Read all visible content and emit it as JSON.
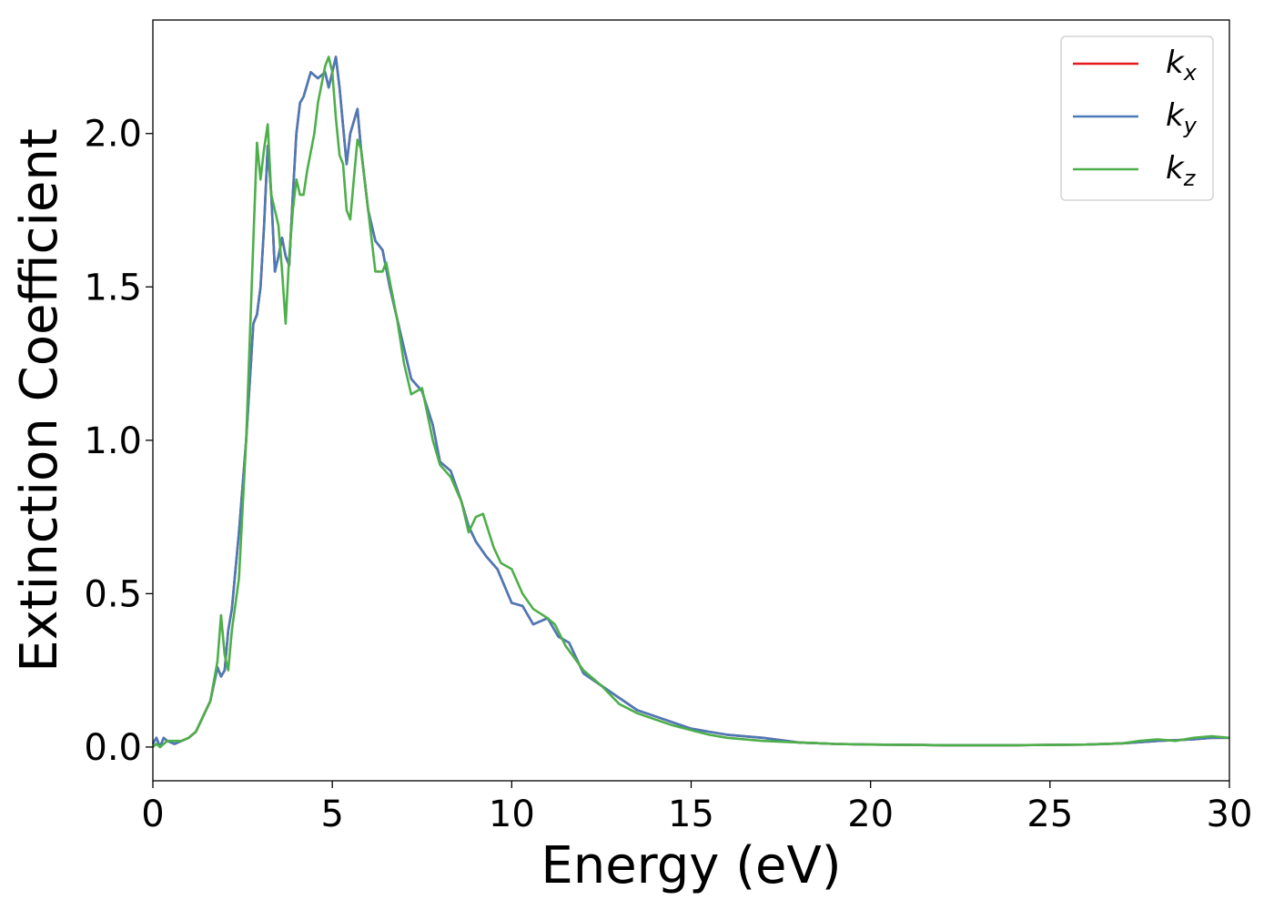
{
  "chart_data": {
    "type": "line",
    "xlabel": "Energy (eV)",
    "ylabel": "Extinction Coefficient",
    "xlim": [
      0,
      30
    ],
    "ylim": [
      -0.11,
      2.37
    ],
    "xticks": [
      0,
      5,
      10,
      15,
      20,
      25,
      30
    ],
    "xtick_labels": [
      "0",
      "5",
      "10",
      "15",
      "20",
      "25",
      "30"
    ],
    "yticks": [
      0.0,
      0.5,
      1.0,
      1.5,
      2.0
    ],
    "ytick_labels": [
      "0.0",
      "0.5",
      "1.0",
      "1.5",
      "2.0"
    ],
    "grid": false,
    "legend_position": "top-right",
    "series": [
      {
        "name": "k",
        "subscript": "x",
        "color": "#e41a1c",
        "x": [
          0,
          0.1,
          0.2,
          0.3,
          0.4,
          0.6,
          0.8,
          1.0,
          1.2,
          1.4,
          1.6,
          1.8,
          1.9,
          2.0,
          2.1,
          2.2,
          2.4,
          2.6,
          2.8,
          2.9,
          3.0,
          3.1,
          3.2,
          3.3,
          3.4,
          3.5,
          3.6,
          3.7,
          3.8,
          3.9,
          4.0,
          4.1,
          4.2,
          4.4,
          4.5,
          4.6,
          4.8,
          4.9,
          5.0,
          5.1,
          5.2,
          5.4,
          5.5,
          5.7,
          5.8,
          6.0,
          6.2,
          6.4,
          6.6,
          6.8,
          7.0,
          7.2,
          7.5,
          7.8,
          8.0,
          8.3,
          8.6,
          8.8,
          9.0,
          9.3,
          9.6,
          10.0,
          10.3,
          10.6,
          11.0,
          11.3,
          11.6,
          12.0,
          12.5,
          13.0,
          13.5,
          14.0,
          14.5,
          15.0,
          15.5,
          16.0,
          17.0,
          18.0,
          19.0,
          20.0,
          22.0,
          24.0,
          26.0,
          27.0,
          28.0,
          29.0,
          29.5,
          30.0
        ],
        "values": [
          0.01,
          0.03,
          0.0,
          0.03,
          0.02,
          0.01,
          0.02,
          0.03,
          0.05,
          0.1,
          0.15,
          0.26,
          0.23,
          0.25,
          0.38,
          0.45,
          0.7,
          1.0,
          1.38,
          1.41,
          1.5,
          1.7,
          1.96,
          1.8,
          1.55,
          1.6,
          1.66,
          1.6,
          1.57,
          1.8,
          2.0,
          2.1,
          2.12,
          2.2,
          2.19,
          2.18,
          2.2,
          2.15,
          2.2,
          2.25,
          2.15,
          1.9,
          2.0,
          2.08,
          1.95,
          1.75,
          1.65,
          1.62,
          1.5,
          1.4,
          1.3,
          1.2,
          1.16,
          1.05,
          0.93,
          0.9,
          0.8,
          0.72,
          0.67,
          0.62,
          0.58,
          0.47,
          0.46,
          0.4,
          0.42,
          0.36,
          0.34,
          0.24,
          0.2,
          0.16,
          0.12,
          0.1,
          0.08,
          0.06,
          0.05,
          0.04,
          0.03,
          0.015,
          0.01,
          0.008,
          0.006,
          0.006,
          0.008,
          0.012,
          0.02,
          0.025,
          0.03,
          0.03
        ]
      },
      {
        "name": "k",
        "subscript": "y",
        "color": "#4a7ab8",
        "x": [
          0,
          0.1,
          0.2,
          0.3,
          0.4,
          0.6,
          0.8,
          1.0,
          1.2,
          1.4,
          1.6,
          1.8,
          1.9,
          2.0,
          2.1,
          2.2,
          2.4,
          2.6,
          2.8,
          2.9,
          3.0,
          3.1,
          3.2,
          3.3,
          3.4,
          3.5,
          3.6,
          3.7,
          3.8,
          3.9,
          4.0,
          4.1,
          4.2,
          4.4,
          4.5,
          4.6,
          4.8,
          4.9,
          5.0,
          5.1,
          5.2,
          5.4,
          5.5,
          5.7,
          5.8,
          6.0,
          6.2,
          6.4,
          6.6,
          6.8,
          7.0,
          7.2,
          7.5,
          7.8,
          8.0,
          8.3,
          8.6,
          8.8,
          9.0,
          9.3,
          9.6,
          10.0,
          10.3,
          10.6,
          11.0,
          11.3,
          11.6,
          12.0,
          12.5,
          13.0,
          13.5,
          14.0,
          14.5,
          15.0,
          15.5,
          16.0,
          17.0,
          18.0,
          19.0,
          20.0,
          22.0,
          24.0,
          26.0,
          27.0,
          28.0,
          29.0,
          29.5,
          30.0
        ],
        "values": [
          0.01,
          0.03,
          0.0,
          0.03,
          0.02,
          0.01,
          0.02,
          0.03,
          0.05,
          0.1,
          0.15,
          0.26,
          0.23,
          0.25,
          0.38,
          0.45,
          0.7,
          1.0,
          1.38,
          1.41,
          1.5,
          1.7,
          1.96,
          1.8,
          1.55,
          1.6,
          1.66,
          1.6,
          1.57,
          1.8,
          2.0,
          2.1,
          2.12,
          2.2,
          2.19,
          2.18,
          2.2,
          2.15,
          2.2,
          2.25,
          2.15,
          1.9,
          2.0,
          2.08,
          1.95,
          1.75,
          1.65,
          1.62,
          1.5,
          1.4,
          1.3,
          1.2,
          1.16,
          1.05,
          0.93,
          0.9,
          0.8,
          0.72,
          0.67,
          0.62,
          0.58,
          0.47,
          0.46,
          0.4,
          0.42,
          0.36,
          0.34,
          0.24,
          0.2,
          0.16,
          0.12,
          0.1,
          0.08,
          0.06,
          0.05,
          0.04,
          0.03,
          0.015,
          0.01,
          0.008,
          0.006,
          0.006,
          0.008,
          0.012,
          0.02,
          0.025,
          0.03,
          0.03
        ]
      },
      {
        "name": "k",
        "subscript": "z",
        "color": "#4daf4a",
        "x": [
          0,
          0.1,
          0.2,
          0.4,
          0.6,
          0.8,
          1.0,
          1.2,
          1.4,
          1.6,
          1.8,
          1.9,
          2.0,
          2.1,
          2.2,
          2.4,
          2.6,
          2.8,
          2.9,
          3.0,
          3.1,
          3.2,
          3.3,
          3.4,
          3.5,
          3.6,
          3.7,
          3.8,
          3.9,
          4.0,
          4.1,
          4.2,
          4.3,
          4.5,
          4.6,
          4.8,
          4.9,
          5.0,
          5.1,
          5.2,
          5.3,
          5.4,
          5.5,
          5.6,
          5.7,
          5.8,
          6.0,
          6.2,
          6.4,
          6.5,
          6.8,
          7.0,
          7.2,
          7.5,
          7.8,
          8.0,
          8.3,
          8.6,
          8.8,
          9.0,
          9.2,
          9.5,
          9.7,
          10.0,
          10.3,
          10.6,
          11.0,
          11.2,
          11.5,
          12.0,
          12.5,
          13.0,
          13.5,
          14.0,
          14.5,
          15.0,
          15.5,
          16.0,
          17.0,
          18.0,
          19.0,
          20.0,
          22.0,
          24.0,
          26.0,
          27.0,
          27.5,
          28.0,
          28.5,
          29.0,
          29.5,
          30.0
        ],
        "values": [
          0.0,
          0.01,
          0.0,
          0.02,
          0.02,
          0.02,
          0.03,
          0.05,
          0.1,
          0.15,
          0.28,
          0.43,
          0.3,
          0.25,
          0.38,
          0.55,
          1.0,
          1.65,
          1.97,
          1.85,
          1.95,
          2.03,
          1.8,
          1.75,
          1.7,
          1.55,
          1.38,
          1.6,
          1.75,
          1.85,
          1.8,
          1.8,
          1.88,
          2.0,
          2.1,
          2.22,
          2.25,
          2.2,
          2.05,
          1.93,
          1.9,
          1.75,
          1.72,
          1.85,
          1.98,
          1.95,
          1.75,
          1.55,
          1.55,
          1.58,
          1.4,
          1.25,
          1.15,
          1.17,
          1.0,
          0.92,
          0.88,
          0.8,
          0.7,
          0.75,
          0.76,
          0.65,
          0.6,
          0.58,
          0.5,
          0.45,
          0.42,
          0.4,
          0.33,
          0.25,
          0.2,
          0.14,
          0.11,
          0.09,
          0.07,
          0.055,
          0.04,
          0.03,
          0.02,
          0.015,
          0.01,
          0.008,
          0.006,
          0.006,
          0.008,
          0.012,
          0.02,
          0.025,
          0.02,
          0.03,
          0.035,
          0.03
        ]
      }
    ]
  }
}
